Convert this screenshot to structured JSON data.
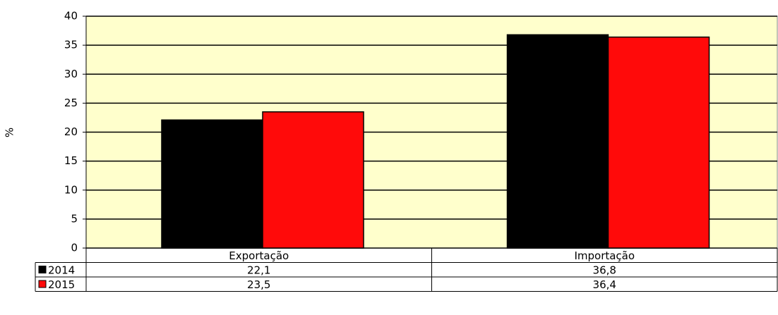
{
  "chart_data": {
    "type": "bar",
    "y_label": "%",
    "categories": [
      "Exportação",
      "Importação"
    ],
    "series": [
      {
        "name": "2014",
        "color": "#000000",
        "values": [
          22.1,
          36.8
        ],
        "value_labels": [
          "22,1",
          "36,8"
        ]
      },
      {
        "name": "2015",
        "color": "#ff0a0a",
        "values": [
          23.5,
          36.4
        ],
        "value_labels": [
          "23,5",
          "36,4"
        ]
      }
    ],
    "ylim": [
      0,
      40
    ],
    "yticks": [
      0,
      5,
      10,
      15,
      20,
      25,
      30,
      35,
      40
    ],
    "grid": true,
    "data_table": true
  }
}
